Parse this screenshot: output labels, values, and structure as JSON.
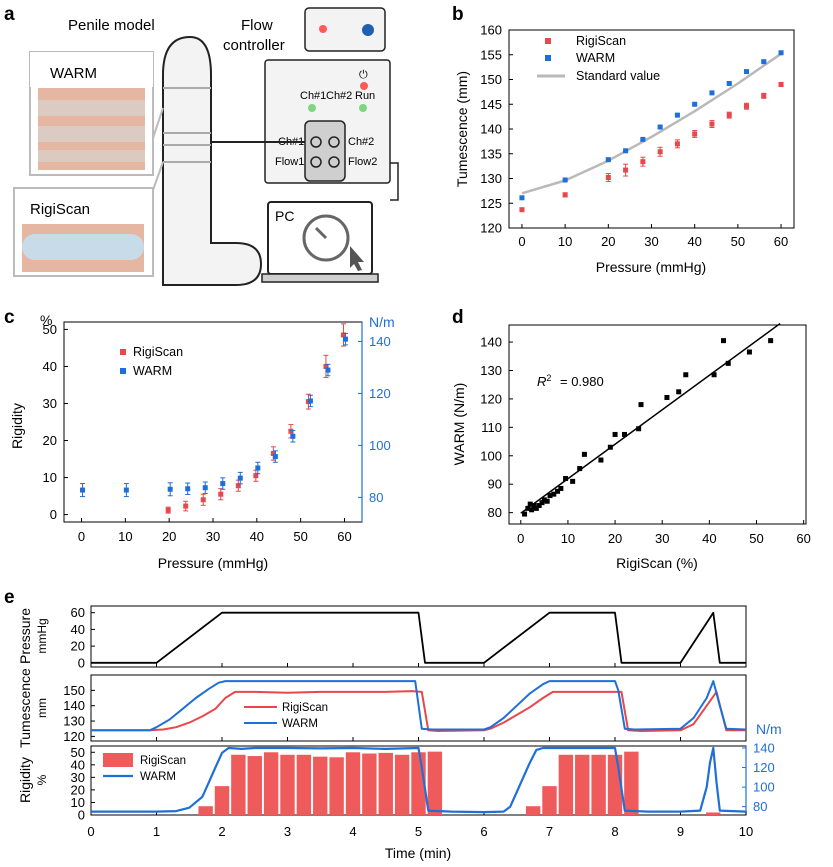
{
  "panel_labels": [
    "a",
    "b",
    "c",
    "d",
    "e"
  ],
  "panel_a": {
    "penile_model_label": "Penile model",
    "flow_controller_label_line1": "Flow",
    "flow_controller_label_line2": "controller",
    "warm_label": "WARM",
    "rigiscan_label": "RigiScan",
    "ch1_label": "Ch#1",
    "ch2_label": "Ch#2",
    "run_label": "Run",
    "flow1_label": "Flow1",
    "flow2_label": "Flow2",
    "pc_label": "PC",
    "colors": {
      "red_led": "#ff5a5a",
      "green_led": "#7ed67e",
      "knob": "#1f5fb0"
    }
  },
  "chart_data": [
    {
      "panel": "b",
      "type": "scatter",
      "xlabel": "Pressure (mmHg)",
      "ylabel": "Tumescence (mm)",
      "xlim": [
        -3,
        63
      ],
      "ylim": [
        120,
        160
      ],
      "xticks": [
        0,
        10,
        20,
        30,
        40,
        50,
        60
      ],
      "yticks": [
        120,
        125,
        130,
        135,
        140,
        145,
        150,
        155,
        160
      ],
      "legend_position": "top-left",
      "series": [
        {
          "name": "RigiScan",
          "color": "#e8474b",
          "x": [
            0,
            10,
            20,
            24,
            28,
            32,
            36,
            40,
            44,
            48,
            52,
            56,
            60
          ],
          "y": [
            123.7,
            126.7,
            130.2,
            131.7,
            133.4,
            135.4,
            137.0,
            139.0,
            141.0,
            142.8,
            144.6,
            146.7,
            149.0
          ],
          "err": [
            0.3,
            0.4,
            0.8,
            1.2,
            0.9,
            0.9,
            0.8,
            0.7,
            0.7,
            0.6,
            0.6,
            0.5,
            0.4
          ]
        },
        {
          "name": "WARM",
          "color": "#1f6fd8",
          "x": [
            0,
            10,
            20,
            24,
            28,
            32,
            36,
            40,
            44,
            48,
            52,
            56,
            60
          ],
          "y": [
            126.1,
            129.7,
            133.8,
            135.6,
            137.9,
            140.4,
            142.8,
            145.0,
            147.3,
            149.2,
            151.6,
            153.6,
            155.4
          ],
          "err": [
            0.2,
            0.2,
            0.2,
            0.2,
            0.2,
            0.2,
            0.2,
            0.2,
            0.2,
            0.2,
            0.2,
            0.2,
            0.2
          ]
        },
        {
          "name": "Standard value",
          "color": "#b9b9b9",
          "type": "line",
          "x": [
            0,
            10,
            20,
            30,
            40,
            50,
            60
          ],
          "y": [
            127.0,
            129.6,
            133.6,
            138.4,
            143.6,
            149.2,
            155.2
          ]
        }
      ]
    },
    {
      "panel": "c",
      "type": "scatter",
      "xlabel": "Pressure (mmHg)",
      "ylabel": "Rigidity",
      "ylabel_unit": "%",
      "y2label_unit": "N/m",
      "xlim": [
        -4,
        64
      ],
      "ylim": [
        -2,
        52
      ],
      "y2lim": [
        70.5,
        147.5
      ],
      "xticks": [
        0,
        10,
        20,
        30,
        40,
        50,
        60
      ],
      "yticks": [
        0,
        10,
        20,
        30,
        40,
        50
      ],
      "y2ticks": [
        80,
        100,
        120,
        140
      ],
      "legend_position": "top-left",
      "series": [
        {
          "name": "RigiScan",
          "color": "#e8474b",
          "axis": "left",
          "x": [
            20,
            24,
            28,
            32,
            36,
            40,
            44,
            48,
            52,
            56,
            60
          ],
          "y": [
            1.2,
            2.3,
            4.0,
            5.5,
            7.8,
            10.5,
            16.5,
            22.5,
            30.5,
            40.0,
            48.5
          ],
          "err": [
            0.8,
            1.3,
            1.5,
            1.5,
            1.5,
            1.5,
            1.8,
            1.8,
            2.0,
            3.0,
            3.0
          ]
        },
        {
          "name": "WARM",
          "color": "#1f6fd8",
          "axis": "right",
          "x": [
            0,
            10,
            20,
            24,
            28,
            32,
            36,
            40,
            44,
            48,
            52,
            56,
            60
          ],
          "y": [
            82.8,
            82.8,
            83.1,
            83.3,
            83.7,
            85.3,
            87.4,
            91.3,
            95.7,
            103.5,
            117.1,
            129.0,
            140.9
          ],
          "err": [
            2.5,
            2.5,
            2.5,
            2.2,
            2.2,
            2.2,
            2.2,
            2.2,
            2.2,
            2.2,
            2.2,
            2.2,
            2.2
          ]
        }
      ]
    },
    {
      "panel": "d",
      "type": "scatter",
      "xlabel": "RigiScan (%)",
      "ylabel": "WARM (N/m)",
      "annotation_text": "= 0.980",
      "xlim": [
        -2.5,
        60.5
      ],
      "ylim": [
        76,
        146
      ],
      "xticks": [
        0,
        10,
        20,
        30,
        40,
        50,
        60
      ],
      "yticks": [
        80,
        90,
        100,
        110,
        120,
        130,
        140
      ],
      "fit_line": {
        "x": [
          0,
          55
        ],
        "y": [
          79.8,
          146.5
        ],
        "color": "#000000"
      },
      "series": [
        {
          "name": "",
          "color": "#000000",
          "x": [
            0.8,
            1.5,
            2.0,
            2.3,
            2.8,
            3.3,
            3.9,
            4.5,
            5.0,
            5.6,
            6.2,
            7.0,
            7.8,
            8.5,
            9.5,
            11.0,
            12.5,
            13.5,
            17.0,
            19.0,
            20.0,
            22.0,
            25.0,
            25.5,
            31.0,
            33.5,
            35.0,
            41.0,
            43.0,
            44.0,
            48.5,
            53.0
          ],
          "y": [
            79.5,
            81.5,
            83.0,
            81.0,
            82.5,
            81.5,
            82.5,
            83.5,
            84.5,
            84.0,
            86.0,
            86.5,
            87.5,
            88.5,
            92.0,
            91.0,
            95.5,
            100.5,
            98.5,
            103.0,
            107.5,
            107.5,
            109.5,
            118.0,
            120.5,
            122.5,
            128.5,
            128.5,
            140.5,
            132.5,
            136.5,
            140.5
          ]
        }
      ]
    },
    {
      "panel": "e",
      "type": "line",
      "xlabel": "Time (min)",
      "xlim": [
        0,
        10
      ],
      "xticks": [
        0,
        1,
        2,
        3,
        4,
        5,
        6,
        7,
        8,
        9,
        10
      ],
      "subplots": [
        {
          "ylabel": "Pressure",
          "ylabel_unit": "mmHg",
          "ylim": [
            -5,
            68
          ],
          "yticks": [
            0,
            20,
            40,
            60
          ],
          "series": [
            {
              "name": "Pressure",
              "color": "#000000",
              "x": [
                0,
                1.0,
                2.0,
                5.0,
                5.1,
                6.0,
                7.0,
                8.0,
                8.1,
                9.0,
                9.5,
                9.6,
                10.0
              ],
              "y": [
                0,
                0,
                60,
                60,
                0,
                0,
                60,
                60,
                0,
                0,
                60,
                0,
                0
              ]
            }
          ]
        },
        {
          "ylabel": "Tumescence",
          "ylabel_unit": "mm",
          "ylim": [
            117,
            160
          ],
          "yticks": [
            120,
            130,
            140,
            150
          ],
          "legend_position": "center",
          "series": [
            {
              "name": "RigiScan",
              "color": "#e8474b",
              "x": [
                0,
                0.9,
                1.1,
                1.3,
                1.5,
                1.7,
                1.9,
                2.05,
                2.2,
                2.5,
                3.0,
                3.5,
                4.0,
                4.5,
                4.9,
                5.05,
                5.15,
                5.3,
                6.0,
                6.1,
                6.3,
                6.5,
                6.7,
                6.9,
                7.05,
                7.2,
                7.5,
                7.9,
                8.1,
                8.2,
                8.4,
                9.0,
                9.2,
                9.4,
                9.55,
                9.7,
                10.0
              ],
              "y": [
                124,
                124,
                124.5,
                126,
                129,
                133,
                138,
                145,
                149,
                149,
                148.5,
                149,
                149,
                149,
                149.5,
                149,
                124,
                123.5,
                124,
                125,
                129,
                134,
                139,
                145,
                149,
                149,
                149,
                149,
                149,
                124,
                123.5,
                124,
                128,
                140,
                149,
                124,
                124
              ]
            },
            {
              "name": "WARM",
              "color": "#1f6fd8",
              "x": [
                0,
                0.9,
                1.0,
                1.2,
                1.4,
                1.6,
                1.8,
                1.95,
                2.05,
                2.2,
                2.5,
                3.0,
                3.5,
                4.0,
                4.5,
                4.95,
                5.05,
                5.2,
                6.0,
                6.1,
                6.3,
                6.5,
                6.7,
                6.9,
                7.0,
                7.1,
                7.5,
                8.0,
                8.05,
                8.15,
                8.3,
                9.0,
                9.2,
                9.4,
                9.5,
                9.6,
                9.7,
                10.0
              ],
              "y": [
                124,
                124,
                126,
                131,
                138,
                145,
                151,
                155,
                156,
                156,
                156,
                156,
                156,
                156,
                156,
                156,
                125,
                124.5,
                124.5,
                126,
                132,
                140,
                148,
                154,
                156,
                156,
                156,
                156,
                150,
                125,
                124.5,
                125,
                132,
                145,
                156,
                140,
                125,
                124.5
              ]
            }
          ]
        },
        {
          "ylabel": "Rigidity",
          "ylabel_unit": "%",
          "y2label_unit": "N/m",
          "ylim": [
            0,
            55
          ],
          "yticks": [
            0,
            10,
            20,
            30,
            40,
            50
          ],
          "y2lim": [
            71.5,
            142
          ],
          "y2ticks": [
            80,
            100,
            120,
            140
          ],
          "legend_position": "top-left",
          "bars": {
            "name": "RigiScan",
            "color": "#ef5b5b",
            "x": [
              1.75,
              2.0,
              2.25,
              2.5,
              2.75,
              3.0,
              3.25,
              3.5,
              3.75,
              4.0,
              4.25,
              4.5,
              4.75,
              5.0,
              5.25,
              6.75,
              7.0,
              7.25,
              7.5,
              7.75,
              8.0,
              8.25,
              9.5
            ],
            "values": [
              7,
              23,
              48,
              47,
              50,
              48,
              48,
              46.5,
              46,
              50,
              49,
              49.5,
              48,
              50,
              50.5,
              7,
              23,
              48,
              48,
              48,
              48,
              50.5,
              2
            ]
          },
          "series": [
            {
              "name": "WARM",
              "color": "#1f6fd8",
              "axis": "right",
              "x": [
                0,
                0.5,
                1.0,
                1.3,
                1.5,
                1.7,
                1.8,
                1.9,
                2.0,
                2.1,
                2.3,
                2.5,
                3.0,
                3.5,
                4.0,
                4.5,
                5.0,
                5.05,
                5.15,
                5.5,
                6.0,
                6.3,
                6.4,
                6.5,
                6.6,
                6.7,
                6.8,
                6.9,
                7.0,
                7.1,
                7.5,
                8.0,
                8.05,
                8.15,
                8.5,
                9.0,
                9.3,
                9.4,
                9.45,
                9.5,
                9.55,
                9.6,
                10.0
              ],
              "y": [
                75,
                75,
                75,
                75.5,
                79,
                90,
                105,
                120,
                135,
                140,
                139,
                140,
                140,
                139.5,
                140,
                139,
                140,
                120,
                76,
                75,
                74.5,
                75,
                80,
                95,
                110,
                125,
                138,
                140,
                140,
                140,
                140,
                140,
                120,
                76,
                75,
                75,
                76,
                100,
                125,
                140,
                105,
                76,
                75
              ]
            }
          ]
        }
      ]
    }
  ]
}
